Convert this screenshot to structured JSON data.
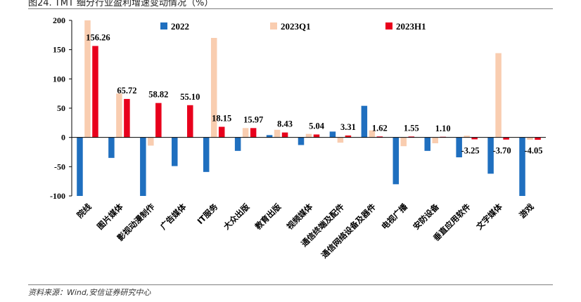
{
  "page": {
    "title": "图24. TMT 细分行业盈利增速变动情况（%）",
    "source": "资料来源：Wind,安信证券研究中心"
  },
  "chart_data": {
    "type": "bar",
    "ylim": [
      -100,
      200
    ],
    "yticks": [
      -100,
      -50,
      0,
      50,
      100,
      150,
      200
    ],
    "legend_position": "top",
    "categories": [
      "院线",
      "图片媒体",
      "影视动漫制作",
      "广告媒体",
      "IT服务",
      "大众出版",
      "教育出版",
      "视频媒体",
      "通信终端及配件",
      "通信网络设备及器件",
      "电视广播",
      "安防设备",
      "垂直应用软件",
      "文字媒体",
      "游戏"
    ],
    "series": [
      {
        "name": "2022",
        "color": "#1f6fbf",
        "values": [
          -100,
          -35,
          -100,
          -49,
          -59,
          -23,
          4,
          -13,
          10,
          54,
          -80,
          -23,
          -34,
          -62,
          -100
        ]
      },
      {
        "name": "2023Q1",
        "color": "#f9cdb0",
        "values": [
          200,
          75,
          -14,
          1,
          170,
          16,
          13,
          6,
          -9,
          12,
          -15,
          -10,
          3,
          144,
          -4
        ]
      },
      {
        "name": "2023H1",
        "color": "#e8001c",
        "values": [
          156.26,
          65.72,
          58.82,
          55.1,
          18.15,
          15.97,
          8.43,
          5.04,
          3.31,
          1.62,
          1.55,
          1.1,
          -3.25,
          -3.7,
          -4.05
        ]
      }
    ],
    "data_labels": [
      "156.26",
      "65.72",
      "58.82",
      "55.10",
      "18.15",
      "15.97",
      "8.43",
      "5.04",
      "3.31",
      "1.62",
      "1.55",
      "1.10",
      "-3.25",
      "-3.70",
      "-4.05"
    ]
  }
}
